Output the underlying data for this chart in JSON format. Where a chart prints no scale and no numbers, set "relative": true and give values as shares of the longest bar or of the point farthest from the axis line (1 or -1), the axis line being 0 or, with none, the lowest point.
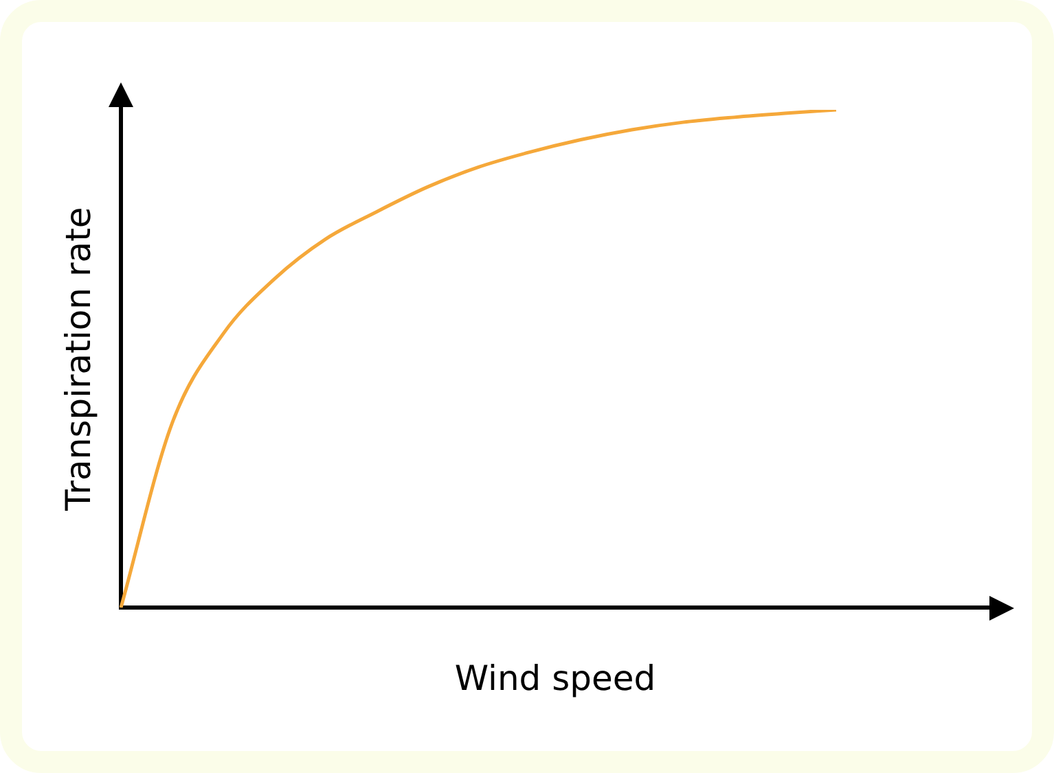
{
  "chart_data": {
    "type": "line",
    "xlabel": "Wind speed",
    "ylabel": "Transpiration rate",
    "relative": true,
    "grid": false,
    "marker": "none",
    "line_style": "solid",
    "categories": [
      null,
      null,
      null,
      null,
      null,
      null,
      null,
      null,
      null,
      null,
      null,
      null,
      null,
      null,
      null,
      null,
      null,
      null
    ],
    "series": [
      {
        "color": "#f5a83a",
        "values": [
          0,
          0.37,
          0.55,
          0.66,
          0.74,
          0.795,
          0.845,
          0.885,
          0.915,
          0.94,
          0.96,
          0.975,
          0.985,
          0.993,
          1,
          null,
          null,
          null
        ]
      }
    ]
  }
}
